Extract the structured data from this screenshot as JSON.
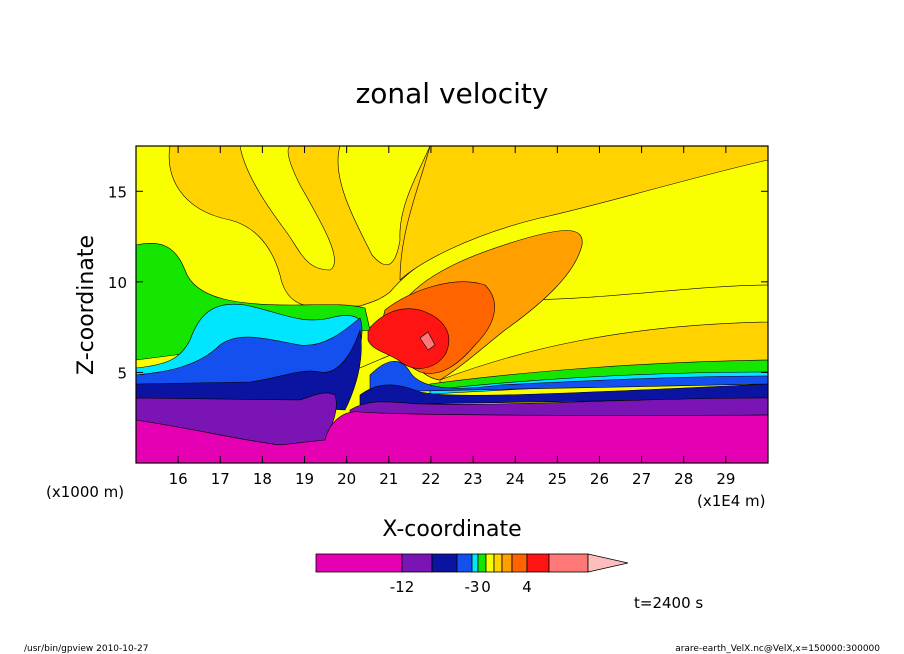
{
  "chart_data": {
    "type": "heatmap",
    "title": "zonal velocity",
    "xlabel": "X-coordinate",
    "ylabel": "Z-coordinate",
    "x_unit_label": "(x1E4 m)",
    "y_unit_label": "(x1000 m)",
    "x_ticks": [
      "16",
      "17",
      "18",
      "19",
      "20",
      "21",
      "22",
      "23",
      "24",
      "25",
      "26",
      "27",
      "28",
      "29"
    ],
    "y_ticks": [
      "5",
      "10",
      "15"
    ],
    "xlim": [
      15.0,
      30.0
    ],
    "ylim": [
      0.0,
      17.5
    ],
    "colorbar_labels": [
      "-12",
      "-3",
      "0",
      "4"
    ],
    "colors": {
      "c0": "#e600b4",
      "c1": "#7a14b4",
      "c2": "#0a14a0",
      "c3": "#1450f0",
      "c4": "#00e6ff",
      "c5": "#14e600",
      "c6": "#faff00",
      "c7": "#ffd200",
      "c8": "#ffa000",
      "c9": "#ff6400",
      "c10": "#ff1414",
      "c11": "#ff7878",
      "c12": "#ffbebe"
    },
    "time_label": "t=2400 s"
  },
  "footer": {
    "left": "/usr/bin/gpview   2010-10-27",
    "right": "arare-earth_VelX.nc@VelX,x=150000:300000"
  }
}
